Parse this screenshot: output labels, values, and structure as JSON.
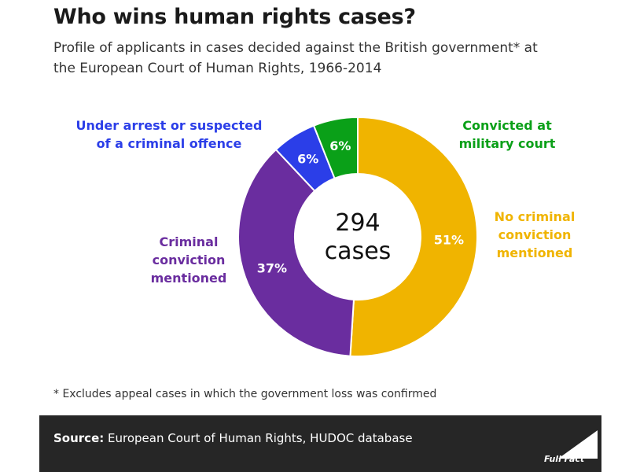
{
  "header": {
    "title": "Who wins human rights cases?",
    "subtitle": "Profile of applicants in cases decided against the British government* at the European Court of Human Rights, 1966-2014"
  },
  "chart_data": {
    "type": "pie",
    "variant": "donut",
    "center_label": [
      "294",
      "cases"
    ],
    "slices": [
      {
        "label": "No criminal conviction mentioned",
        "value": 51,
        "display": "51%",
        "color": "#f0b400"
      },
      {
        "label": "Criminal conviction mentioned",
        "value": 37,
        "display": "37%",
        "color": "#6a2d9f"
      },
      {
        "label": "Under arrest or suspected of a criminal offence",
        "value": 6,
        "display": "6%",
        "color": "#2b3ee8"
      },
      {
        "label": "Convicted at military court",
        "value": 6,
        "display": "6%",
        "color": "#0aa018"
      }
    ]
  },
  "footnote": "* Excludes appeal cases in which the government loss was confirmed",
  "source": {
    "label": "Source:",
    "text": "European Court of Human Rights, HUDOC database"
  },
  "logo": {
    "icon": "full-fact-logo",
    "text": "Full Fact"
  }
}
